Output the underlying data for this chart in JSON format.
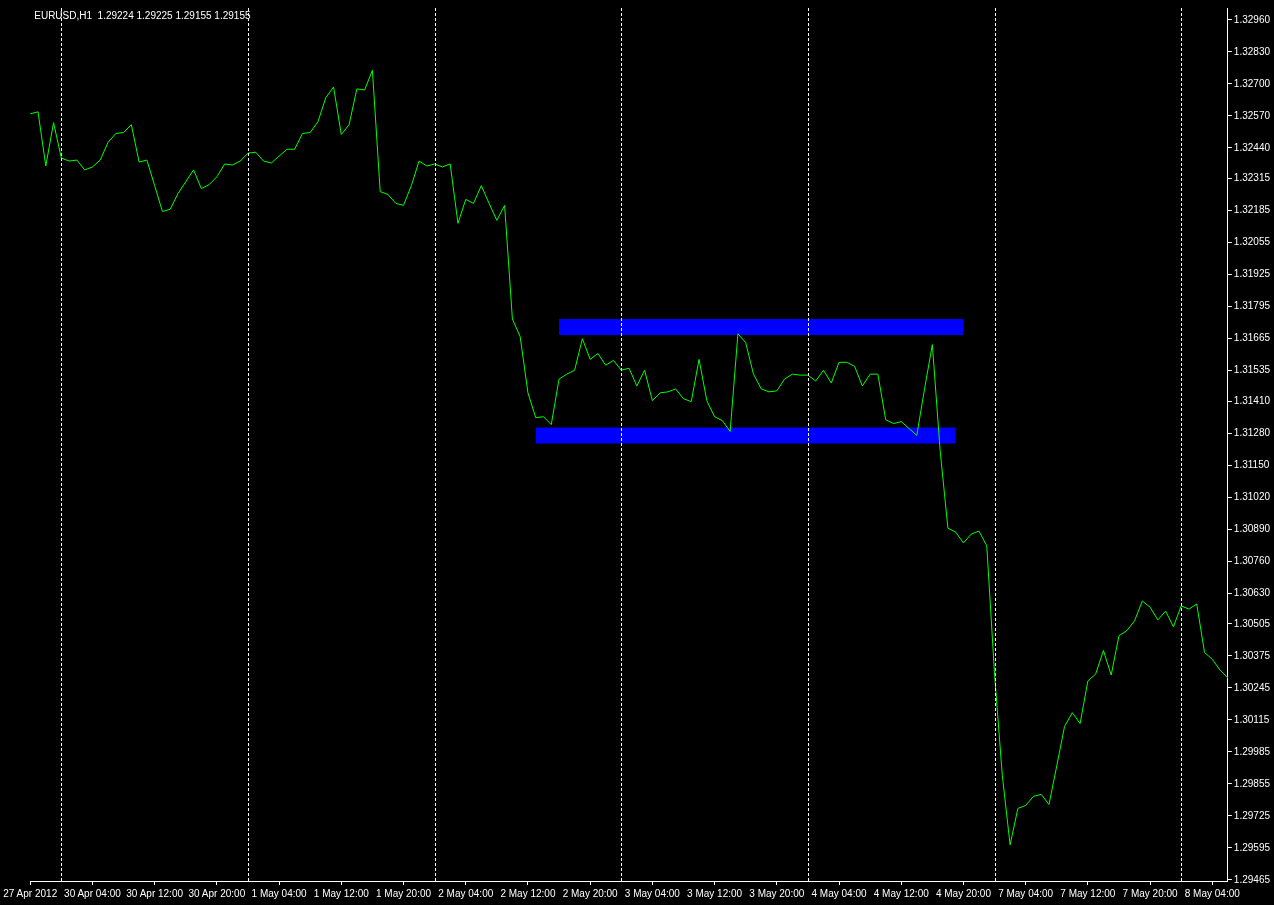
{
  "chart_data": {
    "type": "line",
    "title": "EURUSD,H1  1.29224 1.29225 1.29155 1.29155",
    "categories": [
      "27 Apr 2012",
      null,
      null,
      null,
      null,
      null,
      null,
      null,
      "30 Apr 04:00",
      null,
      null,
      null,
      null,
      null,
      null,
      null,
      "30 Apr 12:00",
      null,
      null,
      null,
      null,
      null,
      null,
      null,
      "30 Apr 20:00",
      null,
      null,
      null,
      null,
      null,
      null,
      null,
      "1 May 04:00",
      null,
      null,
      null,
      null,
      null,
      null,
      null,
      "1 May 12:00",
      null,
      null,
      null,
      null,
      null,
      null,
      null,
      "1 May 20:00",
      null,
      null,
      null,
      null,
      null,
      null,
      null,
      "2 May 04:00",
      null,
      null,
      null,
      null,
      null,
      null,
      null,
      "2 May 12:00",
      null,
      null,
      null,
      null,
      null,
      null,
      null,
      "2 May 20:00",
      null,
      null,
      null,
      null,
      null,
      null,
      null,
      "3 May 04:00",
      null,
      null,
      null,
      null,
      null,
      null,
      null,
      "3 May 12:00",
      null,
      null,
      null,
      null,
      null,
      null,
      null,
      "3 May 20:00",
      null,
      null,
      null,
      null,
      null,
      null,
      null,
      "4 May 04:00",
      null,
      null,
      null,
      null,
      null,
      null,
      null,
      "4 May 12:00",
      null,
      null,
      null,
      null,
      null,
      null,
      null,
      "4 May 20:00",
      null,
      null,
      null,
      null,
      null,
      null,
      null,
      "7 May 04:00",
      null,
      null,
      null,
      null,
      null,
      null,
      null,
      "7 May 12:00",
      null,
      null,
      null,
      null,
      null,
      null,
      null,
      "7 May 20:00",
      null,
      null,
      null,
      null,
      null,
      null,
      null,
      "8 May 04:00",
      null,
      null
    ],
    "series": [
      {
        "type": "line",
        "color": "#00ff00",
        "values": [
          1.32578,
          1.32586,
          1.32366,
          1.32542,
          1.32398,
          1.32386,
          1.3239,
          1.3235,
          1.32362,
          1.3239,
          1.32462,
          1.32498,
          1.32502,
          1.32534,
          1.32382,
          1.3239,
          1.32286,
          1.32181,
          1.3219,
          1.32254,
          1.32302,
          1.3235,
          1.32274,
          1.3229,
          1.32322,
          1.32374,
          1.3237,
          1.32386,
          1.32418,
          1.32422,
          1.32386,
          1.32378,
          1.32406,
          1.32434,
          1.32434,
          1.32498,
          1.32502,
          1.32546,
          1.32643,
          1.32687,
          1.32494,
          1.32534,
          1.32679,
          1.32675,
          1.32755,
          1.32262,
          1.3225,
          1.32214,
          1.32206,
          1.32286,
          1.32386,
          1.32366,
          1.32374,
          1.32362,
          1.32374,
          1.32133,
          1.3223,
          1.32214,
          1.32286,
          1.32214,
          1.32145,
          1.32206,
          1.31744,
          1.31672,
          1.31444,
          1.31343,
          1.31347,
          1.31315,
          1.315,
          1.3152,
          1.31536,
          1.31664,
          1.3158,
          1.31604,
          1.31556,
          1.31576,
          1.31536,
          1.31544,
          1.31472,
          1.31536,
          1.31412,
          1.31444,
          1.31448,
          1.3146,
          1.3142,
          1.31408,
          1.3158,
          1.31412,
          1.31347,
          1.31331,
          1.31287,
          1.31684,
          1.31648,
          1.3152,
          1.3146,
          1.31448,
          1.31452,
          1.315,
          1.3152,
          1.31516,
          1.31516,
          1.31492,
          1.31536,
          1.31484,
          1.31568,
          1.31568,
          1.31552,
          1.31472,
          1.3152,
          1.3152,
          1.31335,
          1.31319,
          1.31327,
          1.31299,
          1.31271,
          1.3146,
          1.3164,
          1.31211,
          1.30894,
          1.30878,
          1.30834,
          1.3087,
          1.30882,
          1.30822,
          1.30301,
          1.29888,
          1.29607,
          1.29755,
          1.29767,
          1.29804,
          1.29812,
          1.29771,
          1.29928,
          1.30088,
          1.30144,
          1.301,
          1.30273,
          1.30301,
          1.30397,
          1.30297,
          1.30457,
          1.30477,
          1.30517,
          1.30598,
          1.30573,
          1.30521,
          1.30557,
          1.30493,
          1.30578,
          1.30565,
          1.30586,
          1.30389,
          1.30361,
          1.30317,
          1.30285
        ]
      },
      {
        "type": "line",
        "color": "#0000ff",
        "values": [
          null,
          null,
          null,
          null,
          null,
          null,
          null,
          null,
          null,
          null,
          null,
          null,
          null,
          null,
          null,
          null,
          null,
          null,
          null,
          null,
          null,
          null,
          null,
          null,
          null,
          null,
          null,
          null,
          null,
          null,
          null,
          null,
          null,
          null,
          null,
          null,
          null,
          null,
          null,
          null,
          null,
          null,
          null,
          null,
          null,
          null,
          null,
          null,
          null,
          null,
          null,
          null,
          null,
          null,
          null,
          null,
          null,
          null,
          null,
          null,
          null,
          null,
          null,
          null,
          null,
          null,
          null,
          null,
          1.31712,
          1.31712,
          1.31712,
          1.31712,
          1.31712,
          1.31712,
          1.31712,
          1.31712,
          1.31712,
          1.31712,
          1.31712,
          1.31712,
          1.31712,
          1.31712,
          1.31712,
          1.31712,
          1.31712,
          1.31712,
          1.31712,
          1.31712,
          1.31712,
          1.31712,
          1.31712,
          1.31712,
          1.31712,
          1.31712,
          1.31712,
          1.31712,
          1.31712,
          1.31712,
          1.31712,
          1.31712,
          1.31712,
          1.31712,
          1.31712,
          1.31712,
          1.31712,
          1.31712,
          1.31712,
          1.31712,
          1.31712,
          1.31712,
          1.31712,
          1.31712,
          1.31712,
          1.31712,
          1.31712,
          1.31712,
          1.31712,
          1.31712,
          1.31712,
          1.31712,
          1.31712,
          null,
          null,
          null,
          null,
          null,
          null,
          null,
          null,
          null,
          null,
          null,
          null,
          null,
          null,
          null,
          null,
          null,
          null,
          null,
          null,
          null,
          null,
          null,
          null,
          null,
          null,
          null,
          null,
          null,
          null,
          null,
          null,
          null,
          null
        ]
      },
      {
        "type": "line",
        "color": "#0000ff",
        "values": [
          null,
          null,
          null,
          null,
          null,
          null,
          null,
          null,
          null,
          null,
          null,
          null,
          null,
          null,
          null,
          null,
          null,
          null,
          null,
          null,
          null,
          null,
          null,
          null,
          null,
          null,
          null,
          null,
          null,
          null,
          null,
          null,
          null,
          null,
          null,
          null,
          null,
          null,
          null,
          null,
          null,
          null,
          null,
          null,
          null,
          null,
          null,
          null,
          null,
          null,
          null,
          null,
          null,
          null,
          null,
          null,
          null,
          null,
          null,
          null,
          null,
          null,
          null,
          null,
          null,
          1.31271,
          1.31271,
          1.31271,
          1.31271,
          1.31271,
          1.31271,
          1.31271,
          1.31271,
          1.31271,
          1.31271,
          1.31271,
          1.31271,
          1.31271,
          1.31271,
          1.31271,
          1.31271,
          1.31271,
          1.31271,
          1.31271,
          1.31271,
          1.31271,
          1.31271,
          1.31271,
          1.31271,
          1.31271,
          1.31271,
          1.31271,
          1.31271,
          1.31271,
          1.31271,
          1.31271,
          1.31271,
          1.31271,
          1.31271,
          1.31271,
          1.31271,
          1.31271,
          1.31271,
          1.31271,
          1.31271,
          1.31271,
          1.31271,
          1.31271,
          1.31271,
          1.31271,
          1.31271,
          1.31271,
          1.31271,
          1.31271,
          1.31271,
          1.31271,
          1.31271,
          1.31271,
          1.31271,
          1.31271,
          null,
          null,
          null,
          null,
          null,
          null,
          null,
          null,
          null,
          null,
          null,
          null,
          null,
          null,
          null,
          null,
          null,
          null,
          null,
          null,
          null,
          null,
          null,
          null,
          null,
          null,
          null,
          null,
          null,
          null,
          null,
          null,
          null,
          null,
          null
        ]
      }
    ],
    "ylim": [
      1.2946,
      1.33008
    ],
    "yticks": [
      1.29465,
      1.29595,
      1.29725,
      1.29855,
      1.29985,
      1.30115,
      1.30245,
      1.30375,
      1.30505,
      {
        "value": 1.3063,
        "label": "1.30630"
      },
      {
        "value": 1.3076,
        "label": "1.30760"
      },
      {
        "value": 1.3089,
        "label": "1.30890"
      },
      {
        "value": 1.3102,
        "label": "1.31020"
      },
      {
        "value": 1.3115,
        "label": "1.31150"
      },
      {
        "value": 1.3128,
        "label": "1.31280"
      },
      {
        "value": 1.3141,
        "label": "1.31410"
      },
      1.31535,
      1.31665,
      1.31795,
      1.31925,
      1.32055,
      1.32185,
      1.32315,
      {
        "value": 1.3244,
        "label": "1.32440"
      },
      {
        "value": 1.3257,
        "label": "1.32570"
      },
      {
        "value": 1.327,
        "label": "1.32700"
      },
      {
        "value": 1.3283,
        "label": "1.32830"
      },
      {
        "value": 1.3296,
        "label": "1.32960"
      }
    ],
    "grid": false,
    "legend": false
  }
}
